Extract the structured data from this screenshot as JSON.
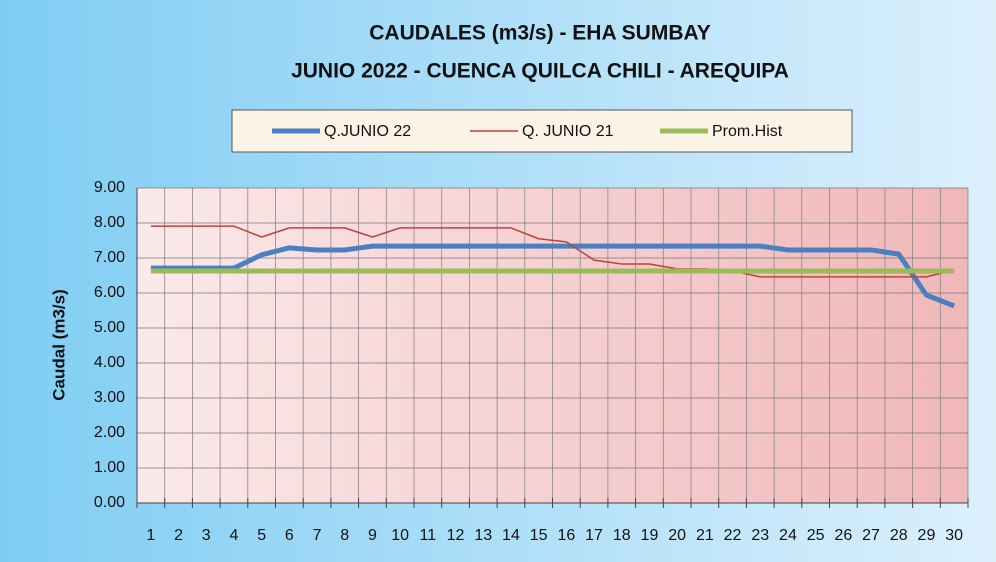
{
  "chart_data": {
    "type": "line",
    "title": "CAUDALES (m3/s) - EHA SUMBAY",
    "subtitle": "JUNIO 2022 -  CUENCA QUILCA CHILI - AREQUIPA",
    "y_label": "Caudal  (m3/s)",
    "categories": [
      "1",
      "2",
      "3",
      "4",
      "5",
      "6",
      "7",
      "8",
      "9",
      "10",
      "11",
      "12",
      "13",
      "14",
      "15",
      "16",
      "17",
      "18",
      "19",
      "20",
      "21",
      "22",
      "23",
      "24",
      "25",
      "26",
      "27",
      "28",
      "29",
      "30"
    ],
    "series": [
      {
        "name": "Q.JUNIO 22",
        "color": "#4a7fc1",
        "width": 5,
        "values": [
          6.71,
          6.71,
          6.71,
          6.71,
          7.09,
          7.29,
          7.23,
          7.23,
          7.34,
          7.34,
          7.34,
          7.34,
          7.34,
          7.34,
          7.34,
          7.34,
          7.34,
          7.34,
          7.34,
          7.34,
          7.34,
          7.34,
          7.34,
          7.23,
          7.23,
          7.23,
          7.23,
          7.11,
          5.94,
          5.63
        ]
      },
      {
        "name": "Q. JUNIO 21",
        "color": "#c0413c",
        "width": 1.5,
        "values": [
          7.91,
          7.91,
          7.91,
          7.91,
          7.6,
          7.86,
          7.86,
          7.86,
          7.6,
          7.86,
          7.86,
          7.86,
          7.86,
          7.86,
          7.55,
          7.46,
          6.94,
          6.83,
          6.83,
          6.69,
          6.69,
          6.63,
          6.46,
          6.46,
          6.46,
          6.46,
          6.46,
          6.46,
          6.46,
          6.66
        ]
      },
      {
        "name": "Prom.Hist",
        "color": "#9bbb59",
        "width": 5,
        "values": [
          6.63,
          6.63,
          6.63,
          6.63,
          6.63,
          6.63,
          6.63,
          6.63,
          6.63,
          6.63,
          6.63,
          6.63,
          6.63,
          6.63,
          6.63,
          6.63,
          6.63,
          6.63,
          6.63,
          6.63,
          6.63,
          6.63,
          6.63,
          6.63,
          6.63,
          6.63,
          6.63,
          6.63,
          6.63,
          6.63
        ]
      }
    ],
    "ylim": [
      0,
      9
    ],
    "yticks": [
      {
        "value": 0,
        "label": "0.00"
      },
      {
        "value": 1,
        "label": "1.00"
      },
      {
        "value": 2,
        "label": "2.00"
      },
      {
        "value": 3,
        "label": "3.00"
      },
      {
        "value": 4,
        "label": "4.00"
      },
      {
        "value": 5,
        "label": "5.00"
      },
      {
        "value": 6,
        "label": "6.00"
      },
      {
        "value": 7,
        "label": "7.00"
      },
      {
        "value": 8,
        "label": "8.00"
      },
      {
        "value": 9,
        "label": "9.00"
      }
    ],
    "grid": true
  }
}
